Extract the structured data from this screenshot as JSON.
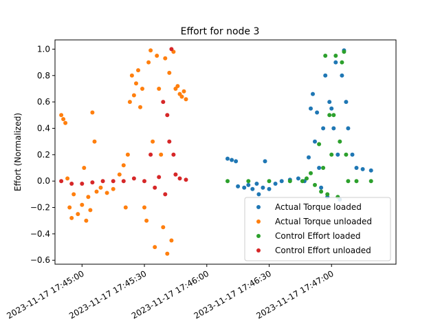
{
  "chart_data": {
    "type": "scatter",
    "title": "Effort for node 3",
    "xlabel": "",
    "ylabel": "Effort (Normalized)",
    "x_tick_labels": [
      "2023-11-17 17:45:00",
      "2023-11-17 17:45:30",
      "2023-11-17 17:46:00",
      "2023-11-17 17:46:30",
      "2023-11-17 17:47:00"
    ],
    "xlim": [
      "2023-11-17 17:44:47",
      "2023-11-17 17:47:31"
    ],
    "ylim": [
      -0.63,
      1.07
    ],
    "y_ticks": [
      -0.6,
      -0.4,
      -0.2,
      0.0,
      0.2,
      0.4,
      0.6,
      0.8,
      1.0
    ],
    "y_tick_labels": [
      "−0.6",
      "−0.4",
      "−0.2",
      "0.0",
      "0.2",
      "0.4",
      "0.6",
      "0.8",
      "1.0"
    ],
    "grid": false,
    "legend_position": "lower-right",
    "series": [
      {
        "name": "Actual Torque loaded",
        "color": "#1f77b4",
        "points": [
          [
            "2023-11-17 17:46:10",
            0.17
          ],
          [
            "2023-11-17 17:46:12",
            0.16
          ],
          [
            "2023-11-17 17:46:14",
            0.15
          ],
          [
            "2023-11-17 17:46:15",
            -0.04
          ],
          [
            "2023-11-17 17:46:18",
            -0.05
          ],
          [
            "2023-11-17 17:46:20",
            -0.03
          ],
          [
            "2023-11-17 17:46:22",
            -0.06
          ],
          [
            "2023-11-17 17:46:24",
            -0.02
          ],
          [
            "2023-11-17 17:46:25",
            -0.1
          ],
          [
            "2023-11-17 17:46:27",
            -0.05
          ],
          [
            "2023-11-17 17:46:28",
            0.15
          ],
          [
            "2023-11-17 17:46:30",
            -0.06
          ],
          [
            "2023-11-17 17:46:33",
            -0.02
          ],
          [
            "2023-11-17 17:46:36",
            0.0
          ],
          [
            "2023-11-17 17:46:40",
            0.01
          ],
          [
            "2023-11-17 17:46:44",
            0.02
          ],
          [
            "2023-11-17 17:46:47",
            0.0
          ],
          [
            "2023-11-17 17:46:49",
            0.18
          ],
          [
            "2023-11-17 17:46:50",
            0.55
          ],
          [
            "2023-11-17 17:46:51",
            0.66
          ],
          [
            "2023-11-17 17:46:52",
            0.3
          ],
          [
            "2023-11-17 17:46:53",
            0.52
          ],
          [
            "2023-11-17 17:46:54",
            0.1
          ],
          [
            "2023-11-17 17:46:55",
            -0.05
          ],
          [
            "2023-11-17 17:46:56",
            0.4
          ],
          [
            "2023-11-17 17:46:57",
            0.8
          ],
          [
            "2023-11-17 17:46:58",
            -0.12
          ],
          [
            "2023-11-17 17:46:59",
            0.6
          ],
          [
            "2023-11-17 17:47:00",
            0.55
          ],
          [
            "2023-11-17 17:47:01",
            0.4
          ],
          [
            "2023-11-17 17:47:02",
            0.9
          ],
          [
            "2023-11-17 17:47:03",
            0.2
          ],
          [
            "2023-11-17 17:47:04",
            -0.14
          ],
          [
            "2023-11-17 17:47:05",
            0.8
          ],
          [
            "2023-11-17 17:47:06",
            0.99
          ],
          [
            "2023-11-17 17:47:07",
            0.6
          ],
          [
            "2023-11-17 17:47:08",
            0.4
          ],
          [
            "2023-11-17 17:47:10",
            0.2
          ],
          [
            "2023-11-17 17:47:12",
            0.1
          ],
          [
            "2023-11-17 17:47:15",
            0.09
          ],
          [
            "2023-11-17 17:47:19",
            0.08
          ]
        ]
      },
      {
        "name": "Actual Torque unloaded",
        "color": "#ff7f0e",
        "points": [
          [
            "2023-11-17 17:44:50",
            0.5
          ],
          [
            "2023-11-17 17:44:51",
            0.47
          ],
          [
            "2023-11-17 17:44:52",
            0.44
          ],
          [
            "2023-11-17 17:44:53",
            0.02
          ],
          [
            "2023-11-17 17:44:54",
            -0.2
          ],
          [
            "2023-11-17 17:44:55",
            -0.28
          ],
          [
            "2023-11-17 17:44:56",
            -0.1
          ],
          [
            "2023-11-17 17:44:58",
            -0.25
          ],
          [
            "2023-11-17 17:45:00",
            -0.18
          ],
          [
            "2023-11-17 17:45:01",
            0.1
          ],
          [
            "2023-11-17 17:45:02",
            -0.3
          ],
          [
            "2023-11-17 17:45:03",
            -0.12
          ],
          [
            "2023-11-17 17:45:04",
            -0.22
          ],
          [
            "2023-11-17 17:45:05",
            0.52
          ],
          [
            "2023-11-17 17:45:06",
            0.3
          ],
          [
            "2023-11-17 17:45:07",
            -0.08
          ],
          [
            "2023-11-17 17:45:09",
            -0.05
          ],
          [
            "2023-11-17 17:45:12",
            -0.09
          ],
          [
            "2023-11-17 17:45:15",
            -0.06
          ],
          [
            "2023-11-17 17:45:18",
            0.05
          ],
          [
            "2023-11-17 17:45:20",
            0.12
          ],
          [
            "2023-11-17 17:45:21",
            -0.2
          ],
          [
            "2023-11-17 17:45:22",
            0.2
          ],
          [
            "2023-11-17 17:45:23",
            0.6
          ],
          [
            "2023-11-17 17:45:24",
            0.8
          ],
          [
            "2023-11-17 17:45:25",
            0.65
          ],
          [
            "2023-11-17 17:45:26",
            0.74
          ],
          [
            "2023-11-17 17:45:27",
            0.84
          ],
          [
            "2023-11-17 17:45:28",
            0.56
          ],
          [
            "2023-11-17 17:45:29",
            0.7
          ],
          [
            "2023-11-17 17:45:30",
            -0.2
          ],
          [
            "2023-11-17 17:45:31",
            -0.3
          ],
          [
            "2023-11-17 17:45:32",
            0.9
          ],
          [
            "2023-11-17 17:45:33",
            0.99
          ],
          [
            "2023-11-17 17:45:34",
            0.3
          ],
          [
            "2023-11-17 17:45:35",
            -0.5
          ],
          [
            "2023-11-17 17:45:36",
            0.95
          ],
          [
            "2023-11-17 17:45:37",
            0.7
          ],
          [
            "2023-11-17 17:45:38",
            0.2
          ],
          [
            "2023-11-17 17:45:39",
            -0.35
          ],
          [
            "2023-11-17 17:45:40",
            0.93
          ],
          [
            "2023-11-17 17:45:41",
            -0.55
          ],
          [
            "2023-11-17 17:45:42",
            0.82
          ],
          [
            "2023-11-17 17:45:43",
            -0.45
          ],
          [
            "2023-11-17 17:45:44",
            0.98
          ],
          [
            "2023-11-17 17:45:45",
            0.7
          ],
          [
            "2023-11-17 17:45:46",
            0.72
          ],
          [
            "2023-11-17 17:45:47",
            0.66
          ],
          [
            "2023-11-17 17:45:48",
            0.64
          ],
          [
            "2023-11-17 17:45:49",
            0.68
          ],
          [
            "2023-11-17 17:45:50",
            0.62
          ]
        ]
      },
      {
        "name": "Control Effort loaded",
        "color": "#2ca02c",
        "points": [
          [
            "2023-11-17 17:46:10",
            0.0
          ],
          [
            "2023-11-17 17:46:20",
            0.0
          ],
          [
            "2023-11-17 17:46:30",
            0.0
          ],
          [
            "2023-11-17 17:46:40",
            0.0
          ],
          [
            "2023-11-17 17:46:46",
            0.0
          ],
          [
            "2023-11-17 17:46:48",
            0.02
          ],
          [
            "2023-11-17 17:46:50",
            0.06
          ],
          [
            "2023-11-17 17:46:52",
            -0.03
          ],
          [
            "2023-11-17 17:46:54",
            0.28
          ],
          [
            "2023-11-17 17:46:55",
            -0.08
          ],
          [
            "2023-11-17 17:46:56",
            0.1
          ],
          [
            "2023-11-17 17:46:57",
            0.95
          ],
          [
            "2023-11-17 17:46:58",
            -0.1
          ],
          [
            "2023-11-17 17:46:59",
            0.5
          ],
          [
            "2023-11-17 17:47:00",
            0.2
          ],
          [
            "2023-11-17 17:47:01",
            0.5
          ],
          [
            "2023-11-17 17:47:02",
            0.95
          ],
          [
            "2023-11-17 17:47:03",
            -0.12
          ],
          [
            "2023-11-17 17:47:04",
            0.3
          ],
          [
            "2023-11-17 17:47:05",
            0.9
          ],
          [
            "2023-11-17 17:47:06",
            0.98
          ],
          [
            "2023-11-17 17:47:07",
            0.2
          ],
          [
            "2023-11-17 17:47:08",
            0.0
          ],
          [
            "2023-11-17 17:47:12",
            0.0
          ],
          [
            "2023-11-17 17:47:19",
            0.0
          ]
        ]
      },
      {
        "name": "Control Effort unloaded",
        "color": "#d62728",
        "points": [
          [
            "2023-11-17 17:44:50",
            0.0
          ],
          [
            "2023-11-17 17:44:55",
            -0.02
          ],
          [
            "2023-11-17 17:45:00",
            -0.02
          ],
          [
            "2023-11-17 17:45:05",
            -0.01
          ],
          [
            "2023-11-17 17:45:10",
            0.0
          ],
          [
            "2023-11-17 17:45:15",
            0.0
          ],
          [
            "2023-11-17 17:45:20",
            0.0
          ],
          [
            "2023-11-17 17:45:25",
            0.02
          ],
          [
            "2023-11-17 17:45:30",
            0.0
          ],
          [
            "2023-11-17 17:45:33",
            0.2
          ],
          [
            "2023-11-17 17:45:35",
            -0.05
          ],
          [
            "2023-11-17 17:45:37",
            0.03
          ],
          [
            "2023-11-17 17:45:39",
            0.6
          ],
          [
            "2023-11-17 17:45:40",
            -0.1
          ],
          [
            "2023-11-17 17:45:41",
            0.5
          ],
          [
            "2023-11-17 17:45:42",
            0.3
          ],
          [
            "2023-11-17 17:45:43",
            1.0
          ],
          [
            "2023-11-17 17:45:44",
            0.2
          ],
          [
            "2023-11-17 17:45:45",
            0.05
          ],
          [
            "2023-11-17 17:45:47",
            0.02
          ],
          [
            "2023-11-17 17:45:50",
            0.01
          ]
        ]
      }
    ]
  }
}
